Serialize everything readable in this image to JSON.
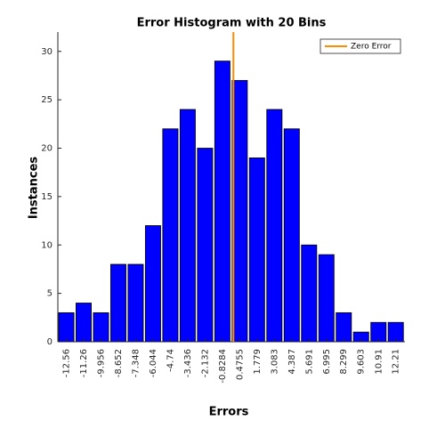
{
  "chart_data": {
    "type": "bar",
    "title": "Error Histogram with 20 Bins",
    "x_label": "Errors",
    "y_label": "Instances",
    "x": [
      -12.56,
      -11.26,
      -9.956,
      -8.652,
      -7.348,
      -6.044,
      -4.74,
      -3.436,
      -2.132,
      -0.8284,
      0.4755,
      1.779,
      3.083,
      4.387,
      5.691,
      6.995,
      8.299,
      9.603,
      10.91,
      12.21
    ],
    "values": [
      3,
      4,
      3,
      8,
      8,
      12,
      22,
      24,
      20,
      29,
      27,
      19,
      24,
      22,
      10,
      9,
      3,
      1,
      2,
      2
    ],
    "color": "#0000ff",
    "xlim": [
      -13.2,
      12.9
    ],
    "xticks": [
      -12.56,
      -11.26,
      -9.956,
      -8.652,
      -7.348,
      -6.044,
      -4.74,
      -3.436,
      -2.132,
      -0.8284,
      0.4755,
      1.779,
      3.083,
      4.387,
      5.691,
      6.995,
      8.299,
      9.603,
      10.91,
      12.21
    ],
    "ylim": [
      0,
      32
    ],
    "yticks": [
      0,
      5,
      10,
      15,
      20,
      25,
      30
    ],
    "reference_line": {
      "name": "Zero Error",
      "x": 0,
      "color": "#ff8c00"
    },
    "legend": "upper right"
  }
}
